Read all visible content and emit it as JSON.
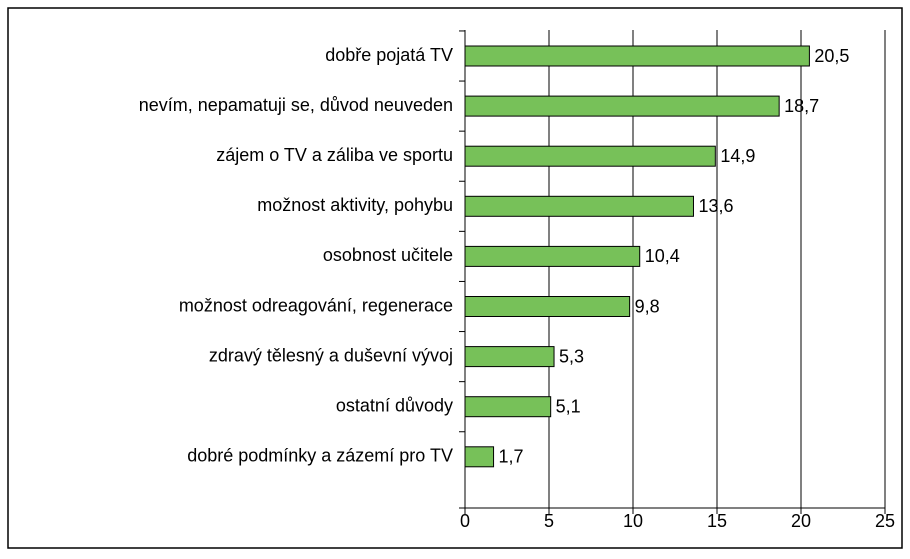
{
  "chart_data": {
    "type": "bar",
    "orientation": "horizontal",
    "categories": [
      "dobře pojatá TV",
      "nevím, nepamatuji se, důvod neuveden",
      "zájem o TV a záliba ve sportu",
      "možnost aktivity, pohybu",
      "osobnost učitele",
      "možnost odreagování, regenerace",
      "zdravý tělesný a duševní vývoj",
      "ostatní důvody",
      "dobré podmínky a zázemí pro TV"
    ],
    "values": [
      20.5,
      18.7,
      14.9,
      13.6,
      10.4,
      9.8,
      5.3,
      5.1,
      1.7
    ],
    "value_labels": [
      "20,5",
      "18,7",
      "14,9",
      "13,6",
      "10,4",
      "9,8",
      "5,3",
      "5,1",
      "1,7"
    ],
    "color": "#77c159",
    "xlim": [
      0,
      25
    ],
    "xticks": [
      0,
      5,
      10,
      15,
      20,
      25
    ],
    "grid": true
  }
}
